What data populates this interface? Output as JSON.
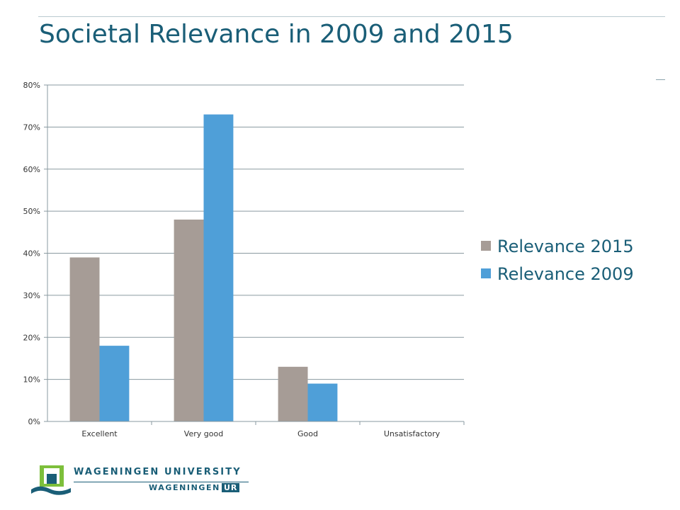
{
  "slide": {
    "title": "Societal Relevance in 2009 and 2015"
  },
  "chart_data": {
    "type": "bar",
    "title": "",
    "xlabel": "",
    "ylabel": "",
    "categories": [
      "Excellent",
      "Very good",
      "Good",
      "Unsatisfactory"
    ],
    "series": [
      {
        "name": "Relevance 2015",
        "values": [
          39,
          48,
          13,
          0
        ],
        "color": "#a69c96"
      },
      {
        "name": "Relevance 2009",
        "values": [
          18,
          73,
          9,
          0
        ],
        "color": "#4f9fd8"
      }
    ],
    "ylim": [
      0,
      80
    ],
    "yticks": [
      0,
      10,
      20,
      30,
      40,
      50,
      60,
      70,
      80
    ],
    "ytick_labels": [
      "0%",
      "10%",
      "20%",
      "30%",
      "40%",
      "50%",
      "60%",
      "70%",
      "80%"
    ],
    "grid": true,
    "legend_position": "right"
  },
  "footer": {
    "logo_line1": "WAGENINGEN UNIVERSITY",
    "logo_line2_prefix": "WAGENINGEN",
    "logo_line2_box": "UR",
    "logo_icon": "wageningen-shield-icon"
  }
}
